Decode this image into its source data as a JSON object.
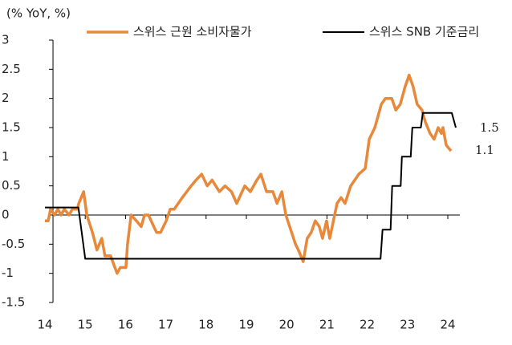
{
  "chart_data": {
    "type": "line",
    "y_axis_label": "(% YoY, %)",
    "xlim": [
      14.2,
      24.3
    ],
    "ylim": [
      -1.5,
      3
    ],
    "xticks": [
      14,
      15,
      16,
      17,
      18,
      19,
      20,
      21,
      22,
      23,
      24
    ],
    "yticks": [
      3,
      2.5,
      2,
      1.5,
      1,
      0.5,
      0,
      -0.5,
      -1,
      -1.5
    ],
    "grid": false,
    "legend": "top",
    "series": [
      {
        "name": "스위스 근원 소비자물가",
        "color": "#e8883a",
        "x": [
          14.0,
          14.08,
          14.14,
          14.24,
          14.32,
          14.4,
          14.48,
          14.6,
          14.68,
          14.8,
          14.84,
          14.96,
          15.04,
          15.18,
          15.29,
          15.41,
          15.49,
          15.63,
          15.79,
          15.87,
          16.01,
          16.05,
          16.14,
          16.27,
          16.39,
          16.47,
          16.57,
          16.77,
          16.87,
          17.01,
          17.11,
          17.21,
          17.41,
          17.63,
          17.75,
          17.89,
          18.03,
          18.15,
          18.33,
          18.47,
          18.63,
          18.76,
          18.96,
          19.1,
          19.26,
          19.36,
          19.5,
          19.66,
          19.76,
          19.88,
          19.98,
          20.22,
          20.29,
          20.41,
          20.51,
          20.61,
          20.71,
          20.81,
          20.89,
          20.99,
          21.07,
          21.25,
          21.35,
          21.45,
          21.59,
          21.79,
          21.95,
          22.05,
          22.19,
          22.35,
          22.45,
          22.61,
          22.71,
          22.82,
          22.94,
          23.04,
          23.14,
          23.24,
          23.36,
          23.44,
          23.56,
          23.66,
          23.76,
          23.84,
          23.88,
          23.96,
          24.08
        ],
        "values": [
          -0.1,
          -0.1,
          0.1,
          0.0,
          0.1,
          0.0,
          0.1,
          0.0,
          0.1,
          0.1,
          0.2,
          0.4,
          0.0,
          -0.3,
          -0.6,
          -0.4,
          -0.7,
          -0.7,
          -1.0,
          -0.9,
          -0.9,
          -0.5,
          0.0,
          -0.1,
          -0.2,
          0.0,
          0.0,
          -0.3,
          -0.3,
          -0.1,
          0.1,
          0.1,
          0.3,
          0.5,
          0.6,
          0.7,
          0.5,
          0.6,
          0.4,
          0.5,
          0.4,
          0.2,
          0.5,
          0.4,
          0.6,
          0.7,
          0.4,
          0.4,
          0.2,
          0.4,
          0.0,
          -0.5,
          -0.6,
          -0.8,
          -0.4,
          -0.3,
          -0.1,
          -0.2,
          -0.4,
          -0.1,
          -0.4,
          0.2,
          0.3,
          0.2,
          0.5,
          0.7,
          0.8,
          1.3,
          1.5,
          1.9,
          2.0,
          2.0,
          1.8,
          1.9,
          2.2,
          2.4,
          2.2,
          1.9,
          1.8,
          1.6,
          1.4,
          1.3,
          1.5,
          1.4,
          1.5,
          1.2,
          1.1
        ]
      },
      {
        "name": "스위스 SNB 기준금리",
        "color": "#000000",
        "x": [
          14.0,
          14.83,
          15.0,
          22.33,
          22.38,
          22.58,
          22.62,
          22.83,
          22.86,
          23.08,
          23.12,
          23.33,
          23.38,
          24.1,
          24.2
        ],
        "values": [
          0.13,
          0.13,
          -0.75,
          -0.75,
          -0.25,
          -0.25,
          0.5,
          0.5,
          1.0,
          1.0,
          1.5,
          1.5,
          1.75,
          1.75,
          1.5
        ]
      }
    ],
    "annotations": [
      "1.5",
      "1.1"
    ]
  }
}
